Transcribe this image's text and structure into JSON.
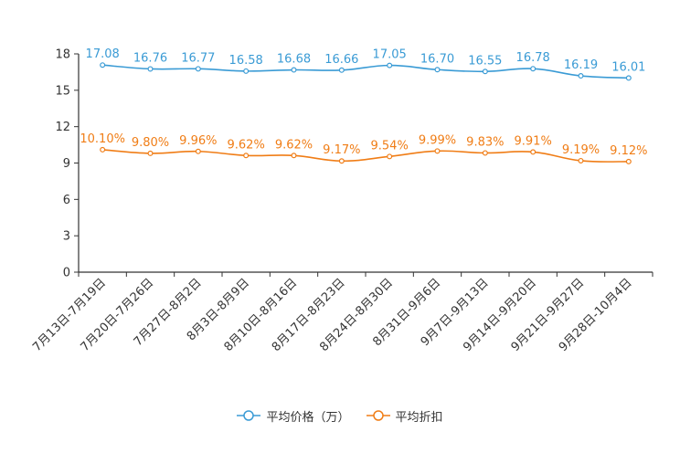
{
  "chart_data": {
    "type": "line",
    "categories": [
      "7月13日-7月19日",
      "7月20日-7月26日",
      "7月27日-8月2日",
      "8月3日-8月9日",
      "8月10日-8月16日",
      "8月17日-8月23日",
      "8月24日-8月30日",
      "8月31日-9月6日",
      "9月7日-9月13日",
      "9月14日-9月20日",
      "9月21日-9月27日",
      "9月28日-10月4日"
    ],
    "ylim": [
      0,
      18
    ],
    "yticks": [
      0,
      3,
      6,
      9,
      12,
      15,
      18
    ],
    "series": [
      {
        "name": "平均价格（万）",
        "color": "#3A9BD5",
        "values": [
          17.08,
          16.76,
          16.77,
          16.58,
          16.68,
          16.66,
          17.05,
          16.7,
          16.55,
          16.78,
          16.19,
          16.01
        ],
        "labels": [
          "17.08",
          "16.76",
          "16.77",
          "16.58",
          "16.68",
          "16.66",
          "17.05",
          "16.70",
          "16.55",
          "16.78",
          "16.19",
          "16.01"
        ]
      },
      {
        "name": "平均折扣",
        "color": "#F07D16",
        "values": [
          10.1,
          9.8,
          9.96,
          9.62,
          9.62,
          9.17,
          9.54,
          9.99,
          9.83,
          9.91,
          9.19,
          9.12
        ],
        "labels": [
          "10.10%",
          "9.80%",
          "9.96%",
          "9.62%",
          "9.62%",
          "9.17%",
          "9.54%",
          "9.99%",
          "9.83%",
          "9.91%",
          "9.19%",
          "9.12%"
        ]
      }
    ]
  }
}
